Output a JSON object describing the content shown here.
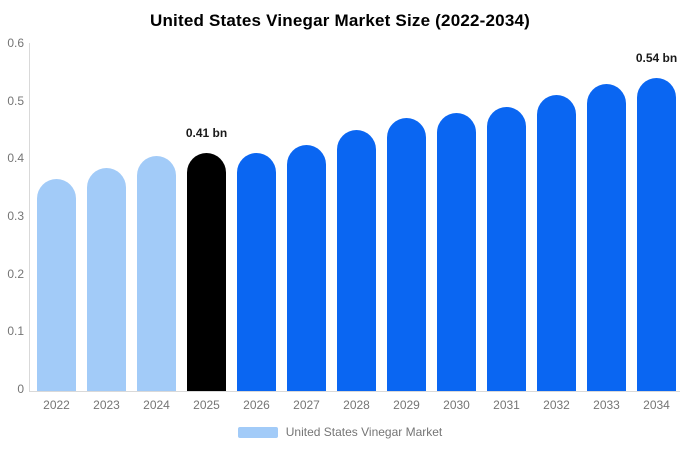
{
  "title": "United States Vinegar Market Size (2022-2034)",
  "chart_data": {
    "type": "bar",
    "title": "United States Vinegar Market Size (2022-2034)",
    "categories": [
      "2022",
      "2023",
      "2024",
      "2025",
      "2026",
      "2027",
      "2028",
      "2029",
      "2030",
      "2031",
      "2032",
      "2033",
      "2034"
    ],
    "values": [
      0.365,
      0.385,
      0.405,
      0.41,
      0.41,
      0.425,
      0.45,
      0.47,
      0.48,
      0.49,
      0.51,
      0.53,
      0.54
    ],
    "unit": "bn",
    "xlabel": "",
    "ylabel": "",
    "ylim": [
      0,
      0.6
    ],
    "yticks": [
      "0",
      "0.1",
      "0.2",
      "0.3",
      "0.4",
      "0.5",
      "0.6"
    ],
    "grid": false,
    "bar_roles": [
      "historical",
      "historical",
      "historical",
      "base_year",
      "forecast",
      "forecast",
      "forecast",
      "forecast",
      "forecast",
      "forecast",
      "forecast",
      "forecast",
      "forecast"
    ],
    "palette": {
      "historical": "#a2cbf8",
      "base_year": "#000000",
      "forecast": "#0a66f2"
    },
    "axis_color": "#d9d9d9",
    "tick_text_color": "#757575",
    "annotations": [
      {
        "category": "2025",
        "text": "0.41 bn"
      },
      {
        "category": "2034",
        "text": "0.54 bn"
      }
    ],
    "legend": {
      "position": "bottom",
      "label": "United States Vinegar Market",
      "swatch_color": "#a2cbf8"
    }
  }
}
